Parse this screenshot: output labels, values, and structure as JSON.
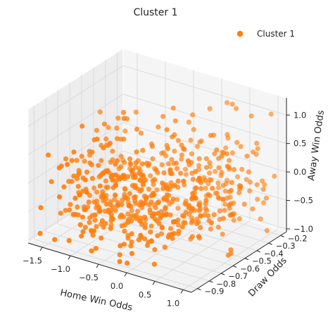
{
  "chart_data": {
    "type": "scatter",
    "projection": "3d",
    "title": "Cluster 1",
    "xlabel": "Home Win Odds",
    "ylabel": "Draw Odds",
    "zlabel": "Away Win Odds",
    "xlim": [
      -1.75,
      1.15
    ],
    "ylim": [
      -0.95,
      -0.15
    ],
    "zlim": [
      -1.05,
      1.3
    ],
    "xticks": [
      -1.5,
      -1.0,
      -0.5,
      0.0,
      0.5,
      1.0
    ],
    "xtick_labels": [
      "−1.5",
      "−1.0",
      "−0.5",
      "0.0",
      "0.5",
      "1.0"
    ],
    "yticks": [
      -0.9,
      -0.8,
      -0.7,
      -0.6,
      -0.5,
      -0.4,
      -0.3,
      -0.2
    ],
    "ytick_labels": [
      "−0.9",
      "−0.8",
      "−0.7",
      "−0.6",
      "−0.5",
      "−0.4",
      "−0.3",
      "−0.2"
    ],
    "zticks": [
      -1.0,
      -0.5,
      0.0,
      0.5,
      1.0
    ],
    "ztick_labels": [
      "−1.0",
      "−0.5",
      "0.0",
      "0.5",
      "1.0"
    ],
    "grid": true,
    "legend_position": "top-right",
    "series": [
      {
        "name": "Cluster 1",
        "color": "#ff7f0e",
        "points_note_count": 600,
        "points": [
          [
            -1.3,
            -0.75,
            -0.55
          ],
          [
            -1.2,
            -0.7,
            -0.5
          ],
          [
            -1.1,
            -0.8,
            -0.6
          ],
          [
            -1.0,
            -0.65,
            -0.45
          ],
          [
            -0.9,
            -0.75,
            -0.5
          ],
          [
            -0.8,
            -0.7,
            -0.6
          ],
          [
            -0.7,
            -0.6,
            -0.55
          ],
          [
            -0.6,
            -0.8,
            -0.65
          ],
          [
            -0.5,
            -0.7,
            -0.6
          ],
          [
            -0.4,
            -0.75,
            -0.55
          ],
          [
            -0.3,
            -0.65,
            -0.6
          ],
          [
            -0.2,
            -0.7,
            -0.65
          ],
          [
            -0.1,
            -0.8,
            -0.7
          ],
          [
            0.0,
            -0.75,
            -0.6
          ],
          [
            0.1,
            -0.7,
            -0.55
          ],
          [
            0.2,
            -0.65,
            -0.5
          ],
          [
            0.3,
            -0.6,
            -0.55
          ],
          [
            0.4,
            -0.55,
            -0.6
          ],
          [
            0.5,
            -0.5,
            -0.5
          ],
          [
            0.6,
            -0.45,
            -0.45
          ],
          [
            -1.25,
            -0.55,
            -0.2
          ],
          [
            -1.05,
            -0.5,
            -0.1
          ],
          [
            -0.85,
            -0.45,
            0.0
          ],
          [
            -0.65,
            -0.5,
            -0.15
          ],
          [
            -0.45,
            -0.55,
            -0.25
          ],
          [
            -0.25,
            -0.45,
            -0.05
          ],
          [
            -0.05,
            -0.4,
            0.1
          ],
          [
            0.15,
            -0.35,
            0.2
          ],
          [
            0.35,
            -0.3,
            0.3
          ],
          [
            0.55,
            -0.25,
            0.4
          ],
          [
            -1.4,
            -0.6,
            0.2
          ],
          [
            -1.2,
            -0.55,
            0.3
          ],
          [
            -1.0,
            -0.5,
            0.4
          ],
          [
            -0.8,
            -0.45,
            0.5
          ],
          [
            -0.6,
            -0.4,
            0.6
          ],
          [
            -0.4,
            -0.35,
            0.7
          ],
          [
            -0.2,
            -0.3,
            0.8
          ],
          [
            0.0,
            -0.25,
            0.9
          ],
          [
            0.2,
            -0.2,
            1.0
          ],
          [
            0.4,
            -0.25,
            1.1
          ]
        ]
      }
    ]
  }
}
